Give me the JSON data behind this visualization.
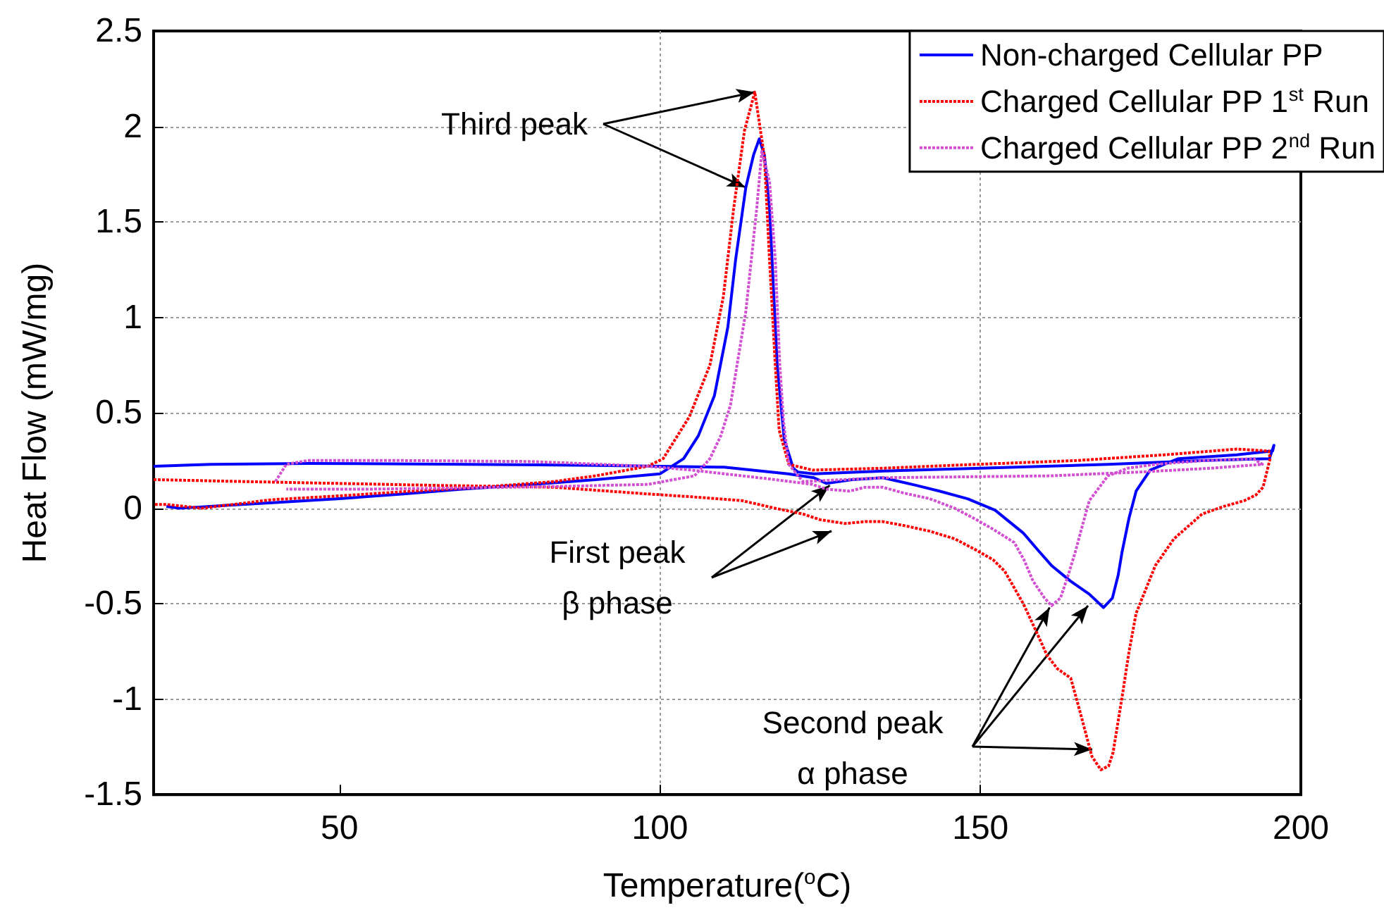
{
  "chart_data": {
    "type": "line",
    "xlabel": "Temperature($^{o}$C)",
    "ylabel": "Heat Flow (mW/mg)",
    "xlim": [
      21,
      200
    ],
    "xticks": [
      50,
      100,
      150,
      200
    ],
    "ylim": [
      -1.5,
      2.5
    ],
    "yticks": [
      -1.5,
      -1,
      -0.5,
      0,
      0.5,
      1,
      1.5,
      2,
      2.5
    ],
    "grid": true,
    "legend": "top right",
    "annotations": [
      {
        "text": "Third peak",
        "x": 114.8,
        "y": 2.18
      },
      {
        "text": "First peak\nβ phase",
        "x": 126.5,
        "y": 0.12
      },
      {
        "text": "Second peak\nα phase",
        "x": 160.8,
        "y": -0.52
      }
    ],
    "series": [
      {
        "name": "Non-charged Cellular PP",
        "color": "#0000ff",
        "line_style": "solid",
        "x": [
          21,
          30,
          45,
          70,
          90,
          100,
          110,
          120,
          124,
          126,
          130,
          134.8,
          140,
          143.6,
          148,
          152.3,
          156.7,
          159,
          161.1,
          164,
          167,
          169.2,
          170.6,
          171.5,
          172.1,
          173.2,
          174.3,
          176.5,
          180.9,
          190,
          195.6,
          195.8,
          195.1,
          185,
          170,
          150,
          135,
          124,
          121.5,
          120.8,
          119.4,
          118.3,
          117.1,
          116.3,
          115.5,
          114.6,
          113.4,
          111.8,
          110.6,
          108.5,
          106,
          103.7,
          100,
          90,
          80,
          69.1,
          60,
          50,
          40,
          32.4,
          25,
          23
        ],
        "values": [
          0.22,
          0.23,
          0.235,
          0.23,
          0.225,
          0.22,
          0.215,
          0.18,
          0.16,
          0.13,
          0.15,
          0.16,
          0.12,
          0.09,
          0.05,
          -0.01,
          -0.13,
          -0.22,
          -0.3,
          -0.38,
          -0.45,
          -0.52,
          -0.47,
          -0.35,
          -0.23,
          -0.05,
          0.09,
          0.2,
          0.26,
          0.28,
          0.3,
          0.33,
          0.26,
          0.25,
          0.23,
          0.21,
          0.195,
          0.18,
          0.19,
          0.21,
          0.36,
          0.75,
          1.57,
          1.85,
          1.935,
          1.85,
          1.68,
          1.3,
          0.95,
          0.59,
          0.38,
          0.26,
          0.18,
          0.15,
          0.125,
          0.1,
          0.075,
          0.05,
          0.03,
          0.015,
          0,
          0.01
        ]
      },
      {
        "name": "Charged Cellular PP 1$^{st}$ Run",
        "color": "#ff0000",
        "line_style": "dotted",
        "x": [
          21,
          35,
          50,
          65,
          83.5,
          98.1,
          105,
          112.8,
          118,
          122.3,
          125,
          128.9,
          132,
          134.8,
          138,
          142.1,
          146,
          149.4,
          152,
          153.8,
          156.7,
          158.5,
          160.4,
          162,
          164.1,
          165.5,
          167.4,
          168.8,
          170,
          170.7,
          172.1,
          173.2,
          174.3,
          177.3,
          180.2,
          184.6,
          188,
          191.2,
          193,
          194.1,
          195.2,
          195,
          190,
          178.7,
          165,
          149.4,
          135,
          123.8,
          120.1,
          118.6,
          118,
          117.1,
          116.3,
          114.8,
          113.2,
          111.5,
          109.9,
          107.8,
          104.6,
          100.5,
          98.1,
          90,
          83.5,
          72,
          61.5,
          50,
          39.5,
          28.5,
          23,
          21
        ],
        "values": [
          0.15,
          0.14,
          0.13,
          0.12,
          0.11,
          0.075,
          0.06,
          0.04,
          0,
          -0.03,
          -0.06,
          -0.08,
          -0.07,
          -0.07,
          -0.09,
          -0.12,
          -0.16,
          -0.22,
          -0.27,
          -0.33,
          -0.5,
          -0.63,
          -0.77,
          -0.84,
          -0.89,
          -1.06,
          -1.3,
          -1.37,
          -1.35,
          -1.28,
          -0.99,
          -0.75,
          -0.55,
          -0.3,
          -0.16,
          -0.03,
          0.01,
          0.04,
          0.07,
          0.11,
          0.26,
          0.3,
          0.31,
          0.28,
          0.25,
          0.23,
          0.21,
          0.2,
          0.23,
          0.41,
          0.75,
          1.3,
          1.84,
          2.18,
          1.98,
          1.57,
          1.11,
          0.75,
          0.48,
          0.26,
          0.22,
          0.17,
          0.14,
          0.11,
          0.09,
          0.065,
          0.045,
          0,
          0.02,
          0.02
        ]
      },
      {
        "name": "Charged Cellular PP 2$^{nd}$ Run",
        "color": "#d24fd2",
        "line_style": "dotted",
        "x": [
          40,
          41.7,
          45,
          60,
          80,
          98.1,
          105,
          112.8,
          118,
          123.8,
          126,
          129.6,
          132,
          134.8,
          138,
          142.1,
          146,
          149.4,
          152,
          155.3,
          156.8,
          158.2,
          160,
          161.1,
          162.5,
          163.7,
          164.8,
          166,
          167,
          169.9,
          173,
          177.3,
          185,
          192.6,
          194,
          186,
          175,
          161.1,
          148,
          134.8,
          122.3,
          120.1,
          119.3,
          118.7,
          118,
          117.1,
          115.9,
          115.1,
          113.4,
          111,
          109.5,
          107.8,
          105.4,
          98.1,
          85,
          76.2,
          54.2,
          41.7
        ],
        "values": [
          0.14,
          0.23,
          0.25,
          0.25,
          0.245,
          0.22,
          0.2,
          0.17,
          0.15,
          0.125,
          0.1,
          0.09,
          0.11,
          0.11,
          0.08,
          0.05,
          0,
          -0.06,
          -0.11,
          -0.18,
          -0.27,
          -0.38,
          -0.47,
          -0.51,
          -0.47,
          -0.35,
          -0.23,
          -0.08,
          0.04,
          0.17,
          0.21,
          0.23,
          0.25,
          0.26,
          0.23,
          0.21,
          0.19,
          0.17,
          0.165,
          0.16,
          0.14,
          0.23,
          0.45,
          0.75,
          1.3,
          1.71,
          1.87,
          1.57,
          1.03,
          0.54,
          0.38,
          0.26,
          0.17,
          0.125,
          0.115,
          0.11,
          0.1,
          0.1
        ]
      }
    ]
  }
}
